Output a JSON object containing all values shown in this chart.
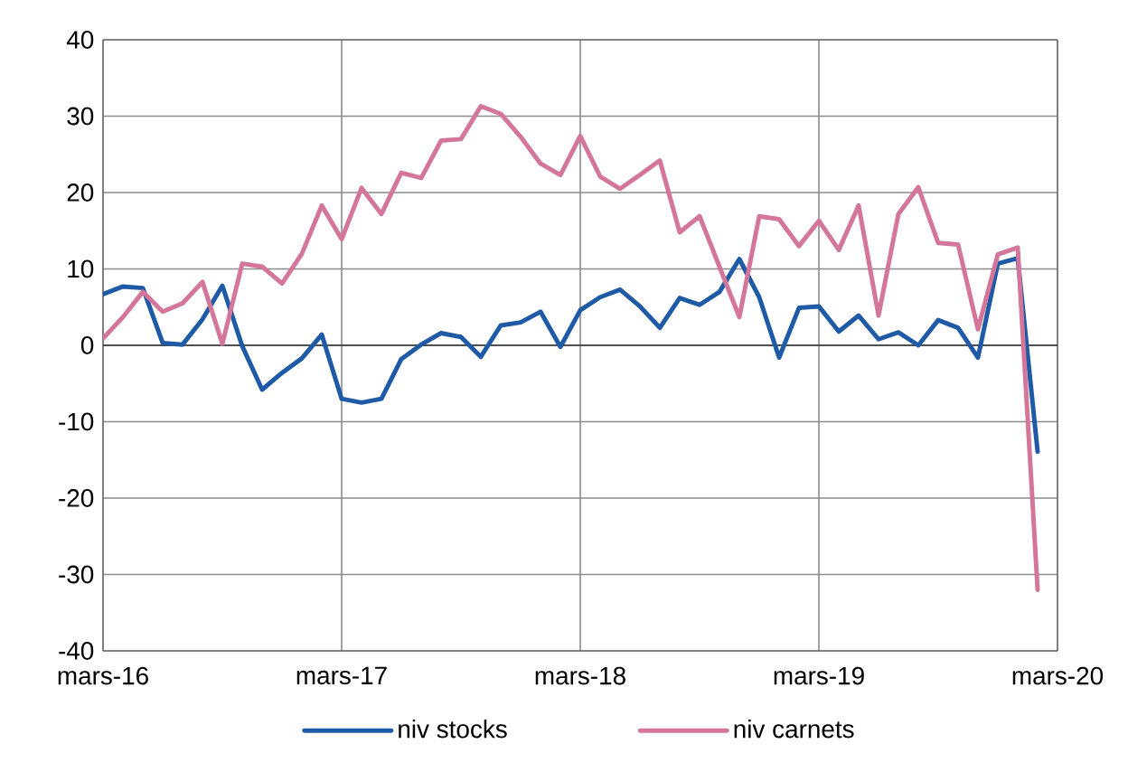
{
  "chart_data": {
    "type": "line",
    "x": [
      "2016-03",
      "2016-04",
      "2016-05",
      "2016-06",
      "2016-07",
      "2016-08",
      "2016-09",
      "2016-10",
      "2016-11",
      "2016-12",
      "2017-01",
      "2017-02",
      "2017-03",
      "2017-04",
      "2017-05",
      "2017-06",
      "2017-07",
      "2017-08",
      "2017-09",
      "2017-10",
      "2017-11",
      "2017-12",
      "2018-01",
      "2018-02",
      "2018-03",
      "2018-04",
      "2018-05",
      "2018-06",
      "2018-07",
      "2018-08",
      "2018-09",
      "2018-10",
      "2018-11",
      "2018-12",
      "2019-01",
      "2019-02",
      "2019-03",
      "2019-04",
      "2019-05",
      "2019-06",
      "2019-07",
      "2019-08",
      "2019-09",
      "2019-10",
      "2019-11",
      "2019-12",
      "2020-01",
      "2020-02"
    ],
    "series": [
      {
        "name": "niv stocks",
        "color": "#1f5aa6",
        "values": [
          6.7,
          7.7,
          7.5,
          0.3,
          0.1,
          3.4,
          7.8,
          -0.1,
          -5.8,
          -3.6,
          -1.7,
          1.4,
          -7.0,
          -7.5,
          -7.0,
          -1.8,
          0.1,
          1.6,
          1.1,
          -1.5,
          2.6,
          3.0,
          4.4,
          -0.2,
          4.6,
          6.3,
          7.3,
          5.1,
          2.3,
          6.2,
          5.3,
          7.0,
          11.3,
          6.3,
          -1.6,
          4.9,
          5.1,
          1.8,
          3.9,
          0.8,
          1.7,
          0.0,
          3.3,
          2.3,
          -1.6,
          10.7,
          11.4,
          -13.9
        ]
      },
      {
        "name": "niv carnets",
        "color": "#d4759a",
        "values": [
          0.9,
          3.7,
          7.0,
          4.4,
          5.5,
          8.3,
          0.2,
          10.7,
          10.3,
          8.1,
          12.0,
          18.3,
          13.9,
          20.6,
          17.2,
          22.6,
          21.9,
          26.8,
          27.0,
          31.3,
          30.3,
          27.3,
          23.8,
          22.3,
          27.4,
          22.1,
          20.5,
          22.3,
          24.2,
          14.8,
          16.9,
          10.3,
          3.7,
          16.9,
          16.5,
          13.0,
          16.3,
          12.5,
          18.3,
          3.9,
          17.2,
          20.7,
          13.4,
          13.2,
          2.1,
          11.9,
          12.8,
          -32.0
        ]
      }
    ],
    "xlim": [
      "2016-03",
      "2020-03"
    ],
    "xticks": [
      {
        "value": "2016-03",
        "label": "mars-16"
      },
      {
        "value": "2017-03",
        "label": "mars-17"
      },
      {
        "value": "2018-03",
        "label": "mars-18"
      },
      {
        "value": "2019-03",
        "label": "mars-19"
      },
      {
        "value": "2020-03",
        "label": "mars-20"
      }
    ],
    "ylim": [
      -40,
      40
    ],
    "yticks": [
      -40,
      -30,
      -20,
      -10,
      0,
      10,
      20,
      30,
      40
    ],
    "grid": true,
    "legend": "bottom",
    "marker": "none",
    "line_style": "solid"
  }
}
